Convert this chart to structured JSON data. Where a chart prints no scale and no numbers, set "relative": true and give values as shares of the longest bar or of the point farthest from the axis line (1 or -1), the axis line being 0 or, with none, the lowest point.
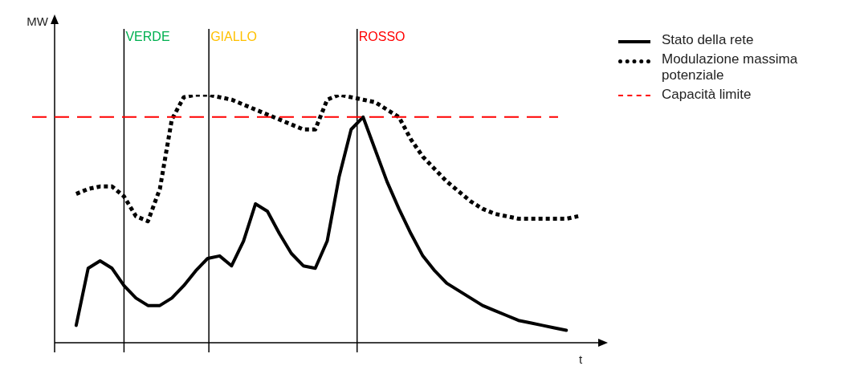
{
  "chart_data": {
    "type": "line",
    "relative": true,
    "xlabel": "t",
    "categories": [
      null,
      null,
      null,
      null,
      null,
      null,
      null,
      null,
      null,
      null,
      null,
      null,
      null,
      null,
      null,
      null,
      null,
      null,
      null,
      null,
      null,
      null,
      null,
      null,
      null,
      null,
      null,
      null,
      null,
      null,
      null,
      null,
      null,
      null,
      null,
      null,
      null,
      null,
      null,
      null,
      null,
      null,
      null,
      null,
      null
    ],
    "series": [
      {
        "name": "Stato della rete",
        "color": "#000000",
        "line_style": "solid",
        "values": [
          null,
          0.07,
          0.3,
          0.33,
          0.3,
          0.23,
          0.18,
          0.15,
          0.15,
          0.18,
          0.23,
          0.29,
          0.34,
          0.35,
          0.31,
          0.41,
          0.56,
          0.53,
          0.44,
          0.36,
          0.31,
          0.3,
          0.41,
          0.67,
          0.86,
          0.91,
          0.78,
          0.65,
          0.54,
          0.44,
          0.35,
          0.29,
          0.24,
          0.21,
          0.18,
          0.15,
          0.13,
          0.11,
          0.09,
          0.08,
          0.07,
          0.06,
          0.05,
          null,
          null
        ]
      },
      {
        "name": "Modulazione massima potenziale",
        "color": "#000000",
        "line_style": "dotted",
        "values": [
          null,
          0.6,
          0.62,
          0.63,
          0.63,
          0.59,
          0.51,
          0.49,
          0.62,
          0.9,
          0.99,
          1,
          1,
          0.99,
          0.98,
          0.96,
          0.94,
          0.92,
          0.9,
          0.88,
          0.86,
          0.86,
          0.98,
          1,
          0.99,
          0.98,
          0.97,
          0.94,
          0.91,
          0.82,
          0.75,
          0.7,
          0.65,
          0.61,
          0.57,
          0.54,
          0.52,
          0.51,
          0.5,
          0.5,
          0.5,
          0.5,
          0.5,
          0.51,
          null
        ]
      }
    ],
    "ref_lines": [
      {
        "axis": "y",
        "value": 0.91,
        "label": "Capacità limite",
        "color": "#ff0000",
        "line_style": "dashed"
      }
    ],
    "annotations": [
      "MW",
      "VERDE",
      "GIALLO",
      "ROSSO"
    ],
    "grid": false,
    "legend": "right",
    "tick_labels": false
  }
}
